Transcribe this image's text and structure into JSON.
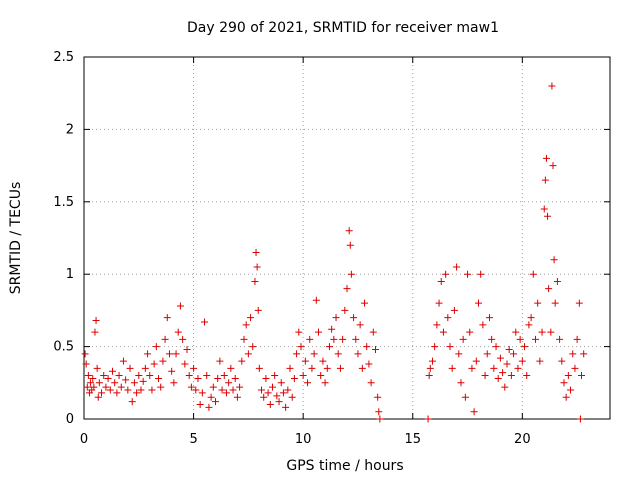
{
  "chart_data": {
    "type": "scatter",
    "title": "Day 290 of 2021, SRMTID for receiver maw1",
    "xlabel": "GPS time / hours",
    "ylabel": "SRMTID / TECUs",
    "xlim": [
      0,
      24
    ],
    "ylim": [
      0,
      2.5
    ],
    "grid": true,
    "marker": "+",
    "marker_color": "#dd0000",
    "xticks": [
      {
        "value": 0,
        "label": "0"
      },
      {
        "value": 5,
        "label": "5"
      },
      {
        "value": 10,
        "label": "10"
      },
      {
        "value": 15,
        "label": "15"
      },
      {
        "value": 20,
        "label": "20"
      }
    ],
    "yticks": [
      {
        "value": 0,
        "label": "0"
      },
      {
        "value": 0.5,
        "label": "0.5"
      },
      {
        "value": 1,
        "label": "1"
      },
      {
        "value": 1.5,
        "label": "1.5"
      },
      {
        "value": 2,
        "label": "2"
      },
      {
        "value": 2.5,
        "label": "2.5"
      }
    ],
    "series": [
      {
        "name": "maw1",
        "points": [
          [
            0.05,
            0.45
          ],
          [
            0.1,
            0.38
          ],
          [
            0.15,
            0.22
          ],
          [
            0.2,
            0.3
          ],
          [
            0.25,
            0.18
          ],
          [
            0.3,
            0.25
          ],
          [
            0.35,
            0.2
          ],
          [
            0.4,
            0.28
          ],
          [
            0.45,
            0.22
          ],
          [
            0.5,
            0.6
          ],
          [
            0.55,
            0.68
          ],
          [
            0.6,
            0.35
          ],
          [
            0.65,
            0.15
          ],
          [
            0.7,
            0.25
          ],
          [
            0.8,
            0.18
          ],
          [
            0.9,
            0.3
          ],
          [
            1.0,
            0.22
          ],
          [
            1.1,
            0.28
          ],
          [
            1.2,
            0.2
          ],
          [
            1.3,
            0.33
          ],
          [
            1.4,
            0.25
          ],
          [
            1.5,
            0.18
          ],
          [
            1.6,
            0.3
          ],
          [
            1.7,
            0.22
          ],
          [
            1.8,
            0.4
          ],
          [
            1.9,
            0.27
          ],
          [
            2.0,
            0.2
          ],
          [
            2.1,
            0.35
          ],
          [
            2.2,
            0.12
          ],
          [
            2.3,
            0.25
          ],
          [
            2.4,
            0.18
          ],
          [
            2.5,
            0.3
          ],
          [
            2.6,
            0.2
          ],
          [
            2.7,
            0.26
          ],
          [
            2.8,
            0.35
          ],
          [
            2.9,
            0.45
          ],
          [
            3.0,
            0.3
          ],
          [
            3.1,
            0.2
          ],
          [
            3.2,
            0.38
          ],
          [
            3.3,
            0.5
          ],
          [
            3.4,
            0.28
          ],
          [
            3.5,
            0.22
          ],
          [
            3.6,
            0.4
          ],
          [
            3.7,
            0.55
          ],
          [
            3.8,
            0.7
          ],
          [
            3.9,
            0.45
          ],
          [
            4.0,
            0.33
          ],
          [
            4.1,
            0.25
          ],
          [
            4.2,
            0.45
          ],
          [
            4.3,
            0.6
          ],
          [
            4.4,
            0.78
          ],
          [
            4.5,
            0.55
          ],
          [
            4.6,
            0.38
          ],
          [
            4.7,
            0.48
          ],
          [
            4.8,
            0.3
          ],
          [
            4.9,
            0.22
          ],
          [
            5.0,
            0.35
          ],
          [
            5.1,
            0.2
          ],
          [
            5.2,
            0.28
          ],
          [
            5.3,
            0.1
          ],
          [
            5.4,
            0.18
          ],
          [
            5.5,
            0.67
          ],
          [
            5.6,
            0.3
          ],
          [
            5.7,
            0.08
          ],
          [
            5.8,
            0.15
          ],
          [
            5.9,
            0.22
          ],
          [
            6.0,
            0.12
          ],
          [
            6.1,
            0.28
          ],
          [
            6.2,
            0.4
          ],
          [
            6.3,
            0.2
          ],
          [
            6.4,
            0.3
          ],
          [
            6.5,
            0.18
          ],
          [
            6.6,
            0.25
          ],
          [
            6.7,
            0.35
          ],
          [
            6.8,
            0.2
          ],
          [
            6.9,
            0.28
          ],
          [
            7.0,
            0.15
          ],
          [
            7.1,
            0.22
          ],
          [
            7.2,
            0.4
          ],
          [
            7.3,
            0.55
          ],
          [
            7.4,
            0.65
          ],
          [
            7.5,
            0.45
          ],
          [
            7.6,
            0.7
          ],
          [
            7.7,
            0.5
          ],
          [
            7.8,
            0.95
          ],
          [
            7.85,
            1.15
          ],
          [
            7.9,
            1.05
          ],
          [
            7.95,
            0.75
          ],
          [
            8.0,
            0.35
          ],
          [
            8.1,
            0.2
          ],
          [
            8.2,
            0.15
          ],
          [
            8.3,
            0.28
          ],
          [
            8.4,
            0.18
          ],
          [
            8.5,
            0.1
          ],
          [
            8.6,
            0.22
          ],
          [
            8.7,
            0.3
          ],
          [
            8.8,
            0.16
          ],
          [
            8.9,
            0.12
          ],
          [
            9.0,
            0.25
          ],
          [
            9.1,
            0.18
          ],
          [
            9.2,
            0.08
          ],
          [
            9.3,
            0.2
          ],
          [
            9.4,
            0.35
          ],
          [
            9.5,
            0.15
          ],
          [
            9.6,
            0.28
          ],
          [
            9.7,
            0.45
          ],
          [
            9.8,
            0.6
          ],
          [
            9.9,
            0.5
          ],
          [
            10.0,
            0.3
          ],
          [
            10.1,
            0.4
          ],
          [
            10.2,
            0.25
          ],
          [
            10.3,
            0.55
          ],
          [
            10.4,
            0.35
          ],
          [
            10.5,
            0.45
          ],
          [
            10.6,
            0.82
          ],
          [
            10.7,
            0.6
          ],
          [
            10.8,
            0.3
          ],
          [
            10.9,
            0.4
          ],
          [
            11.0,
            0.25
          ],
          [
            11.1,
            0.35
          ],
          [
            11.2,
            0.5
          ],
          [
            11.3,
            0.62
          ],
          [
            11.4,
            0.55
          ],
          [
            11.5,
            0.7
          ],
          [
            11.6,
            0.45
          ],
          [
            11.7,
            0.35
          ],
          [
            11.8,
            0.55
          ],
          [
            11.9,
            0.75
          ],
          [
            12.0,
            0.9
          ],
          [
            12.1,
            1.3
          ],
          [
            12.15,
            1.2
          ],
          [
            12.2,
            1.0
          ],
          [
            12.3,
            0.7
          ],
          [
            12.4,
            0.55
          ],
          [
            12.5,
            0.45
          ],
          [
            12.6,
            0.65
          ],
          [
            12.7,
            0.35
          ],
          [
            12.8,
            0.8
          ],
          [
            12.9,
            0.5
          ],
          [
            13.0,
            0.38
          ],
          [
            13.1,
            0.25
          ],
          [
            13.2,
            0.6
          ],
          [
            13.3,
            0.48
          ],
          [
            13.4,
            0.15
          ],
          [
            13.45,
            0.05
          ],
          [
            13.5,
            0.0
          ],
          [
            15.7,
            0.0
          ],
          [
            15.75,
            0.3
          ],
          [
            15.8,
            0.35
          ],
          [
            15.9,
            0.4
          ],
          [
            16.0,
            0.5
          ],
          [
            16.1,
            0.65
          ],
          [
            16.2,
            0.8
          ],
          [
            16.3,
            0.95
          ],
          [
            16.4,
            0.6
          ],
          [
            16.5,
            1.0
          ],
          [
            16.6,
            0.7
          ],
          [
            16.7,
            0.5
          ],
          [
            16.8,
            0.35
          ],
          [
            16.9,
            0.75
          ],
          [
            17.0,
            1.05
          ],
          [
            17.1,
            0.45
          ],
          [
            17.2,
            0.25
          ],
          [
            17.3,
            0.55
          ],
          [
            17.4,
            0.15
          ],
          [
            17.5,
            1.0
          ],
          [
            17.6,
            0.6
          ],
          [
            17.7,
            0.35
          ],
          [
            17.8,
            0.05
          ],
          [
            17.9,
            0.4
          ],
          [
            18.0,
            0.8
          ],
          [
            18.1,
            1.0
          ],
          [
            18.2,
            0.65
          ],
          [
            18.3,
            0.3
          ],
          [
            18.4,
            0.45
          ],
          [
            18.5,
            0.7
          ],
          [
            18.6,
            0.55
          ],
          [
            18.7,
            0.35
          ],
          [
            18.8,
            0.5
          ],
          [
            18.9,
            0.28
          ],
          [
            19.0,
            0.42
          ],
          [
            19.1,
            0.32
          ],
          [
            19.2,
            0.22
          ],
          [
            19.3,
            0.38
          ],
          [
            19.4,
            0.48
          ],
          [
            19.5,
            0.3
          ],
          [
            19.6,
            0.45
          ],
          [
            19.7,
            0.6
          ],
          [
            19.8,
            0.35
          ],
          [
            19.9,
            0.55
          ],
          [
            20.0,
            0.4
          ],
          [
            20.1,
            0.5
          ],
          [
            20.2,
            0.3
          ],
          [
            20.3,
            0.65
          ],
          [
            20.4,
            0.7
          ],
          [
            20.5,
            1.0
          ],
          [
            20.6,
            0.55
          ],
          [
            20.7,
            0.8
          ],
          [
            20.8,
            0.4
          ],
          [
            20.9,
            0.6
          ],
          [
            21.0,
            1.45
          ],
          [
            21.05,
            1.65
          ],
          [
            21.1,
            1.8
          ],
          [
            21.15,
            1.4
          ],
          [
            21.2,
            0.9
          ],
          [
            21.3,
            0.6
          ],
          [
            21.35,
            2.3
          ],
          [
            21.4,
            1.75
          ],
          [
            21.45,
            1.1
          ],
          [
            21.5,
            0.8
          ],
          [
            21.6,
            0.95
          ],
          [
            21.7,
            0.55
          ],
          [
            21.8,
            0.4
          ],
          [
            21.9,
            0.25
          ],
          [
            22.0,
            0.15
          ],
          [
            22.1,
            0.3
          ],
          [
            22.2,
            0.2
          ],
          [
            22.3,
            0.45
          ],
          [
            22.4,
            0.35
          ],
          [
            22.5,
            0.55
          ],
          [
            22.6,
            0.8
          ],
          [
            22.65,
            0.0
          ],
          [
            22.7,
            0.3
          ],
          [
            22.8,
            0.45
          ]
        ]
      }
    ]
  }
}
